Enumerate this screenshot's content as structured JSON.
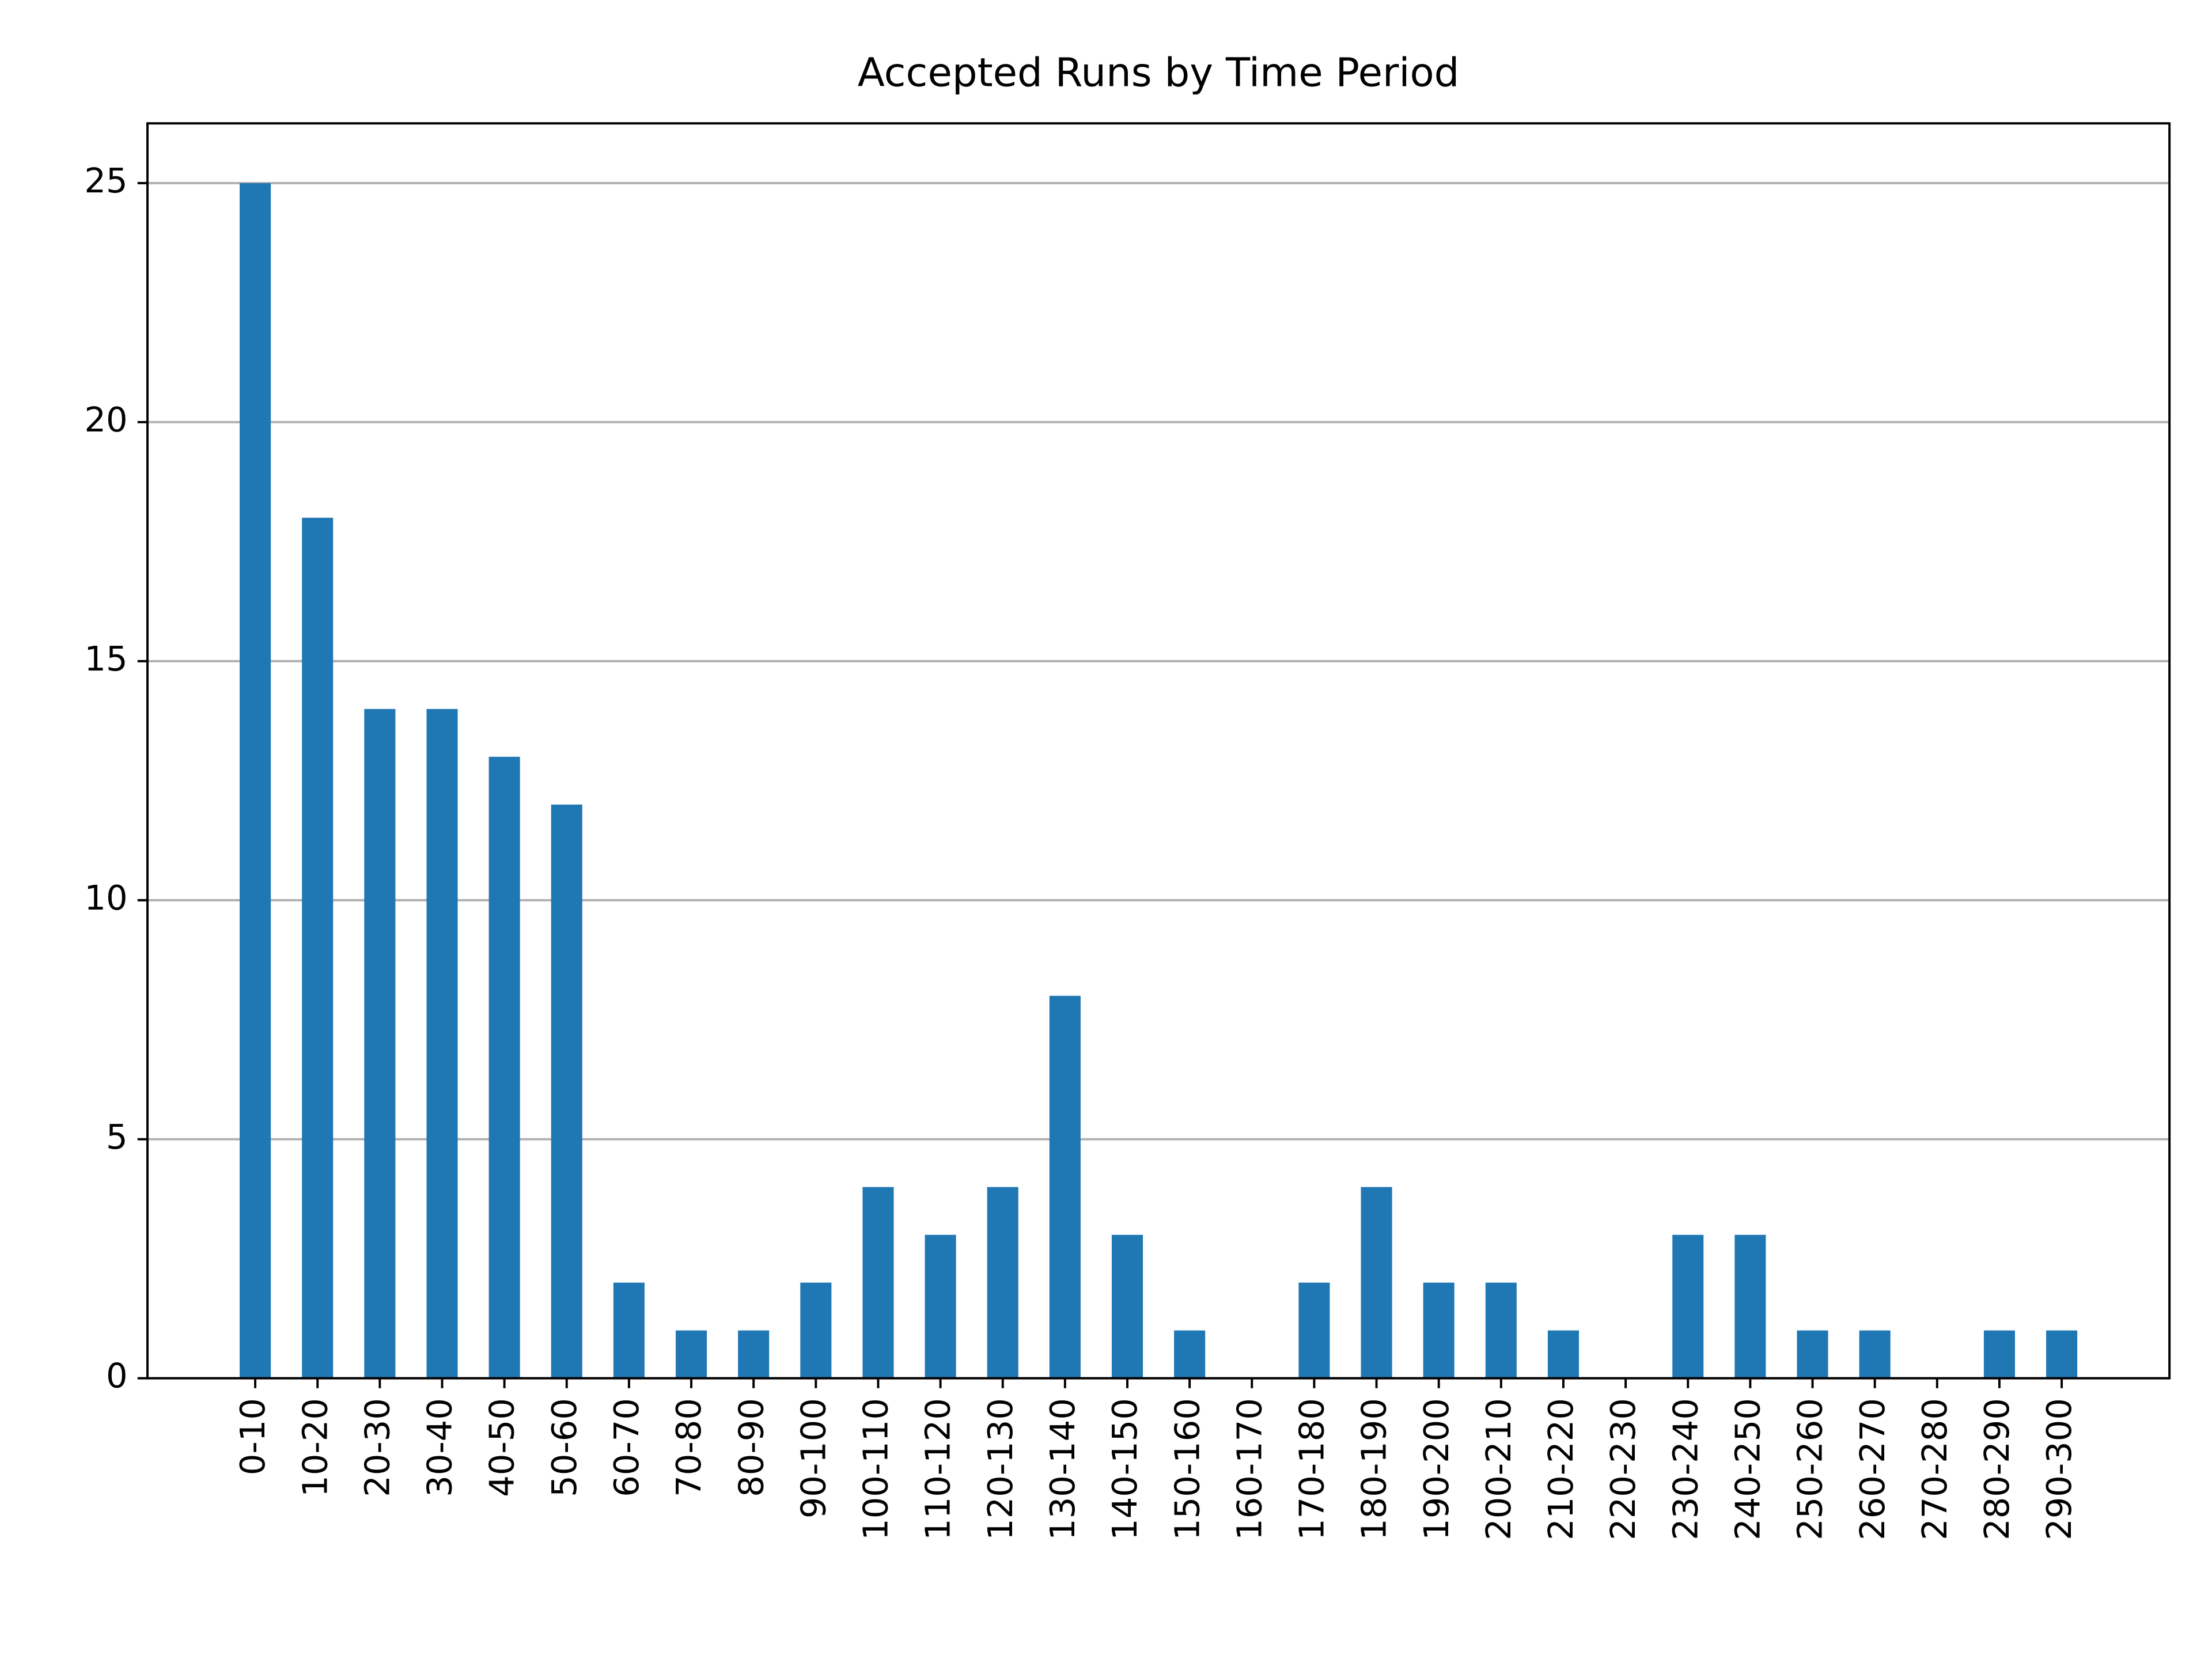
{
  "chart_data": {
    "type": "bar",
    "title": "Accepted Runs by Time Period",
    "categories": [
      "0-10",
      "10-20",
      "20-30",
      "30-40",
      "40-50",
      "50-60",
      "60-70",
      "70-80",
      "80-90",
      "90-100",
      "100-110",
      "110-120",
      "120-130",
      "130-140",
      "140-150",
      "150-160",
      "160-170",
      "170-180",
      "180-190",
      "190-200",
      "200-210",
      "210-220",
      "220-230",
      "230-240",
      "240-250",
      "250-260",
      "260-270",
      "270-280",
      "280-290",
      "290-300"
    ],
    "values": [
      25,
      18,
      14,
      14,
      13,
      12,
      2,
      1,
      1,
      2,
      4,
      3,
      4,
      8,
      3,
      1,
      0,
      2,
      4,
      2,
      2,
      1,
      0,
      3,
      3,
      1,
      1,
      0,
      1,
      1
    ],
    "color": "#1f77b4",
    "ylim": [
      0,
      26.25
    ],
    "yticks": [
      0,
      5,
      10,
      15,
      20,
      25
    ],
    "grid": true
  }
}
